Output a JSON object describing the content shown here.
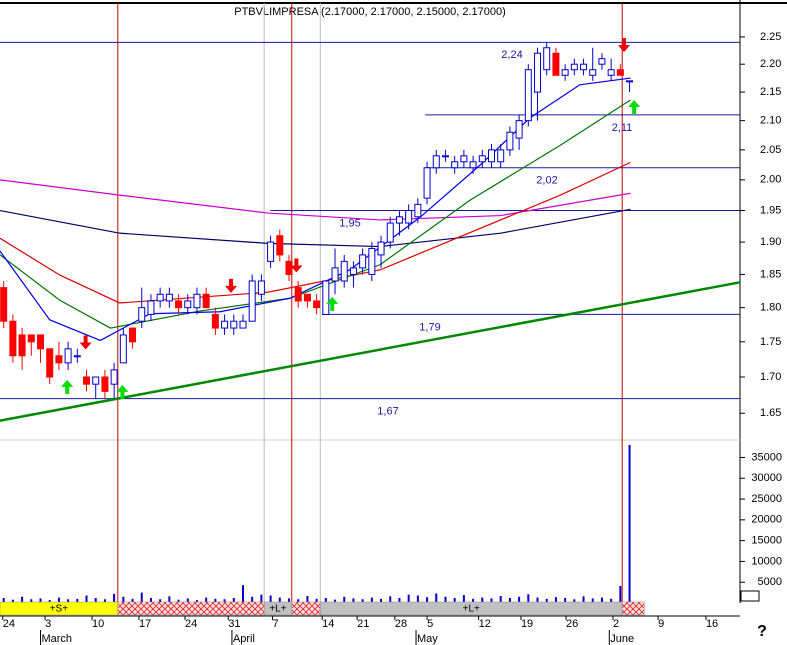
{
  "chart_data": {
    "type": "candlestick",
    "title": "PTBVLIMPRESA (2.17000, 2.17000, 2.15000, 2.17000)",
    "ylim": [
      1.614,
      2.31
    ],
    "log_y": true,
    "yticks": [
      1.65,
      {
        "value": 1.7,
        "label": "1.70"
      },
      1.75,
      {
        "value": 1.8,
        "label": "1.80"
      },
      1.85,
      {
        "value": 1.9,
        "label": "1.90"
      },
      1.95,
      {
        "value": 2.0,
        "label": "2.00"
      },
      2.05,
      {
        "value": 2.1,
        "label": "2.10"
      },
      2.15,
      {
        "value": 2.2,
        "label": "2.20"
      },
      2.25
    ],
    "xlim": [
      -0.4,
      80
    ],
    "xticks": [
      {
        "value": -0.1,
        "label": "24"
      },
      {
        "value": 4.5,
        "label": "3"
      },
      {
        "value": 9.6,
        "label": "10"
      },
      {
        "value": 14.7,
        "label": "17"
      },
      {
        "value": 19.7,
        "label": "24"
      },
      {
        "value": 24.4,
        "label": "31"
      },
      {
        "value": 29.2,
        "label": "7"
      },
      {
        "value": 34.6,
        "label": "14"
      },
      {
        "value": 38.4,
        "label": "21"
      },
      {
        "value": 42.5,
        "label": "28"
      },
      {
        "value": 46.0,
        "label": "5"
      },
      {
        "value": 51.6,
        "label": "12"
      },
      {
        "value": 56.2,
        "label": "19"
      },
      {
        "value": 61.1,
        "label": "26"
      },
      {
        "value": 66.2,
        "label": "2"
      },
      {
        "value": 71.1,
        "label": "9"
      },
      {
        "value": 76.3,
        "label": "16"
      }
    ],
    "months": [
      {
        "value": 4.0,
        "label": "March"
      },
      {
        "value": 24.8,
        "label": "April"
      },
      {
        "value": 44.8,
        "label": "May"
      },
      {
        "value": 65.8,
        "label": "June"
      }
    ],
    "up_color": "#0000cc",
    "down_color": "#ff0000",
    "open": [
      1.83,
      1.78,
      1.76,
      1.76,
      1.76,
      1.74,
      1.73,
      1.72,
      1.73,
      1.7,
      1.69,
      1.7,
      1.69,
      1.72,
      1.77,
      1.78,
      1.79,
      1.81,
      1.81,
      1.81,
      1.8,
      1.8,
      1.82,
      1.79,
      1.77,
      1.77,
      1.77,
      1.78,
      1.82,
      1.87,
      1.91,
      1.87,
      1.83,
      1.82,
      1.81,
      1.79,
      1.84,
      1.84,
      1.85,
      1.86,
      1.85,
      1.88,
      1.9,
      1.93,
      1.93,
      1.94,
      1.97,
      2.02,
      2.04,
      2.02,
      2.03,
      2.02,
      2.03,
      2.03,
      2.03,
      2.05,
      2.07,
      2.1,
      2.15,
      2.19,
      2.22,
      2.18,
      2.19,
      2.19,
      2.18,
      2.2,
      2.18,
      2.19,
      2.17
    ],
    "high": [
      1.84,
      1.79,
      1.77,
      1.76,
      1.76,
      1.74,
      1.75,
      1.75,
      1.74,
      1.71,
      1.7,
      1.71,
      1.72,
      1.77,
      1.77,
      1.83,
      1.82,
      1.83,
      1.83,
      1.82,
      1.82,
      1.83,
      1.83,
      1.8,
      1.79,
      1.79,
      1.79,
      1.85,
      1.85,
      1.91,
      1.92,
      1.88,
      1.84,
      1.82,
      1.82,
      1.84,
      1.89,
      1.88,
      1.87,
      1.89,
      1.9,
      1.91,
      1.94,
      1.95,
      1.96,
      1.97,
      2.03,
      2.05,
      2.05,
      2.04,
      2.05,
      2.04,
      2.05,
      2.06,
      2.06,
      2.09,
      2.11,
      2.2,
      2.23,
      2.24,
      2.23,
      2.2,
      2.21,
      2.21,
      2.23,
      2.22,
      2.21,
      2.2,
      2.17
    ],
    "low": [
      1.77,
      1.72,
      1.71,
      1.73,
      1.72,
      1.69,
      1.71,
      1.71,
      1.72,
      1.68,
      1.67,
      1.67,
      1.67,
      1.72,
      1.74,
      1.77,
      1.78,
      1.8,
      1.8,
      1.79,
      1.79,
      1.79,
      1.8,
      1.76,
      1.76,
      1.76,
      1.77,
      1.78,
      1.81,
      1.86,
      1.87,
      1.84,
      1.8,
      1.8,
      1.79,
      1.79,
      1.82,
      1.83,
      1.83,
      1.85,
      1.84,
      1.86,
      1.89,
      1.91,
      1.92,
      1.93,
      1.96,
      2.01,
      2.03,
      2.01,
      2.02,
      2.01,
      2.02,
      2.02,
      2.02,
      2.04,
      2.05,
      2.09,
      2.1,
      2.18,
      2.18,
      2.17,
      2.18,
      2.18,
      2.17,
      2.19,
      2.17,
      2.18,
      2.15
    ],
    "close": [
      1.78,
      1.73,
      1.73,
      1.75,
      1.74,
      1.7,
      1.72,
      1.74,
      1.73,
      1.69,
      1.7,
      1.68,
      1.71,
      1.76,
      1.75,
      1.8,
      1.81,
      1.82,
      1.82,
      1.8,
      1.81,
      1.82,
      1.8,
      1.77,
      1.78,
      1.78,
      1.78,
      1.84,
      1.84,
      1.9,
      1.88,
      1.85,
      1.81,
      1.81,
      1.8,
      1.84,
      1.86,
      1.87,
      1.86,
      1.88,
      1.89,
      1.9,
      1.93,
      1.94,
      1.95,
      1.96,
      2.02,
      2.04,
      2.04,
      2.03,
      2.04,
      2.03,
      2.04,
      2.05,
      2.05,
      2.08,
      2.1,
      2.19,
      2.22,
      2.23,
      2.18,
      2.19,
      2.2,
      2.2,
      2.19,
      2.21,
      2.19,
      2.18,
      2.17
    ],
    "averages": [
      {
        "color": "#cc00cc",
        "x": [
          -0.4,
          12.6,
          28.7,
          40.9,
          54,
          68.1
        ],
        "values": [
          2.0,
          1.975,
          1.946,
          1.935,
          1.942,
          1.978
        ]
      },
      {
        "color": "#000066",
        "x": [
          -0.4,
          12.6,
          28.7,
          40.9,
          54,
          68.1
        ],
        "values": [
          1.95,
          1.914,
          1.898,
          1.893,
          1.914,
          1.952
        ]
      },
      {
        "color": "#dd0000",
        "x": [
          -0.4,
          6.1,
          12.6,
          28.7,
          40.9,
          60.5,
          68.1
        ],
        "values": [
          1.906,
          1.849,
          1.807,
          1.823,
          1.857,
          1.975,
          2.029
        ]
      },
      {
        "color": "#007700",
        "x": [
          -0.4,
          6.1,
          11.6,
          21.3,
          31.1,
          40.9,
          50.7,
          60.5,
          68.1
        ],
        "values": [
          1.88,
          1.811,
          1.77,
          1.795,
          1.814,
          1.865,
          1.967,
          2.058,
          2.136
        ]
      },
      {
        "color": "#0000ee",
        "x": [
          -0.4,
          5.0,
          10.5,
          15.9,
          23.5,
          31.1,
          37.6,
          45.3,
          51.8,
          57.2,
          62.6,
          68.1
        ],
        "values": [
          1.886,
          1.782,
          1.752,
          1.791,
          1.794,
          1.814,
          1.857,
          1.94,
          2.025,
          2.105,
          2.163,
          2.175
        ]
      }
    ],
    "trendline": {
      "color": "#008800",
      "x": [
        -0.4,
        80
      ],
      "values": [
        1.64,
        1.838
      ]
    },
    "levels": [
      {
        "value": 2.24,
        "label": "2,24",
        "start": -0.4
      },
      {
        "value": 2.11,
        "label": "2,11",
        "start": 45.8
      },
      {
        "value": 2.02,
        "label": "2,02",
        "start": 45.8
      },
      {
        "value": 1.95,
        "label": "1,95",
        "start": 29
      },
      {
        "value": 1.79,
        "label": "1,79",
        "start": 34.6
      },
      {
        "value": 1.67,
        "label": "1,67",
        "start": -0.4
      }
    ],
    "event_lines": {
      "red": [
        12.4,
        31.3,
        67.2
      ],
      "gray": [
        28.3,
        34.4
      ]
    },
    "sell_arrows": {
      "x": [
        8.9,
        24.7,
        31.8,
        67.4
      ],
      "values": [
        1.739,
        1.822,
        1.853,
        2.222
      ]
    },
    "buy_arrows": {
      "x": [
        6.9,
        12.9,
        35.7,
        68.5
      ],
      "values": [
        1.696,
        1.689,
        1.816,
        2.136
      ]
    },
    "volume": {
      "color": "#0000cc",
      "ylim": [
        0,
        38000
      ],
      "yticks": [
        5000,
        10000,
        15000,
        20000,
        25000,
        30000,
        35000
      ],
      "values": [
        1200,
        800,
        1500,
        900,
        1100,
        700,
        1300,
        900,
        1000,
        1800,
        1200,
        900,
        2200,
        1500,
        1000,
        2500,
        1200,
        900,
        1600,
        800,
        1100,
        700,
        1300,
        1000,
        900,
        1200,
        4300,
        1500,
        2000,
        1800,
        1300,
        1100,
        900,
        1700,
        1000,
        1200,
        800,
        1500,
        1100,
        900,
        1300,
        1000,
        1600,
        1200,
        2000,
        1800,
        1400,
        2300,
        1500,
        1200,
        1900,
        1000,
        1300,
        1100,
        1700,
        1200,
        1500,
        2100,
        1300,
        1000,
        1400,
        1200,
        900,
        1600,
        1100,
        1300,
        1000,
        4100,
        38000
      ]
    },
    "signal_bar": [
      {
        "start": -0.4,
        "end": 12.4,
        "label": "+S+",
        "color": "#ffff00"
      },
      {
        "start": 12.4,
        "end": 28.3,
        "color": "hatch"
      },
      {
        "start": 28.3,
        "end": 31.3,
        "label": "+L+",
        "color": "#c0c0c0"
      },
      {
        "start": 31.3,
        "end": 34.4,
        "color": "hatch"
      },
      {
        "start": 34.4,
        "end": 67.2,
        "label": "+L+",
        "color": "#c0c0c0"
      },
      {
        "start": 67.2,
        "end": 69.6,
        "color": "hatch"
      }
    ],
    "help_mark": "?"
  }
}
